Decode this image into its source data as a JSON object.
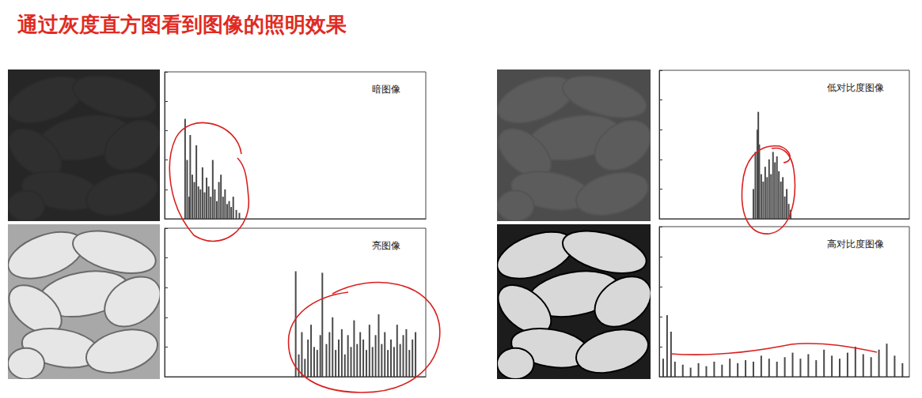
{
  "slide_title": "通过灰度直方图看到图像的照明效果",
  "chart_data": [
    {
      "type": "bar",
      "title": "暗图像",
      "color": "#4a4a4a",
      "x": [
        20,
        22,
        24,
        25,
        27,
        29,
        31,
        33,
        35,
        37,
        39,
        41,
        43,
        45,
        47,
        49,
        51,
        53,
        55,
        57,
        59,
        61,
        63,
        65,
        67,
        70,
        73
      ],
      "values": [
        68,
        40,
        15,
        57,
        30,
        25,
        50,
        22,
        20,
        35,
        18,
        28,
        22,
        15,
        40,
        20,
        12,
        25,
        30,
        15,
        20,
        10,
        12,
        8,
        15,
        6,
        4
      ],
      "xlim": [
        0,
        255
      ],
      "ylim": [
        0,
        100
      ],
      "yticks": [
        0,
        20,
        40,
        60,
        80,
        100
      ],
      "grid": false,
      "tick_labels": false
    },
    {
      "type": "bar",
      "title": "亮图像",
      "color": "#4a4a4a",
      "x": [
        128,
        131,
        134,
        137,
        140,
        143,
        146,
        149,
        152,
        154,
        158,
        161,
        164,
        167,
        170,
        173,
        176,
        179,
        182,
        185,
        188,
        191,
        194,
        197,
        200,
        203,
        206,
        209,
        212,
        215,
        218,
        221,
        224,
        227,
        230,
        233,
        236,
        239,
        242,
        245
      ],
      "values": [
        71,
        15,
        30,
        12,
        25,
        35,
        20,
        18,
        28,
        70,
        22,
        30,
        40,
        18,
        25,
        32,
        15,
        28,
        20,
        38,
        22,
        30,
        25,
        18,
        35,
        20,
        28,
        42,
        22,
        30,
        18,
        25,
        20,
        35,
        22,
        28,
        32,
        18,
        25,
        30
      ],
      "xlim": [
        0,
        255
      ],
      "ylim": [
        0,
        100
      ],
      "yticks": [
        0,
        20,
        40,
        60,
        80,
        100
      ],
      "grid": false,
      "tick_labels": false
    },
    {
      "type": "bar",
      "title": "低对比度图像",
      "color": "#4a4a4a",
      "x": [
        96,
        98,
        100,
        101,
        102,
        104,
        106,
        108,
        110,
        112,
        114,
        116,
        118,
        120,
        122,
        124,
        126,
        128,
        130,
        132,
        134
      ],
      "values": [
        20,
        45,
        60,
        72,
        50,
        30,
        25,
        35,
        28,
        40,
        30,
        45,
        38,
        42,
        32,
        25,
        28,
        15,
        20,
        10,
        6
      ],
      "xlim": [
        0,
        255
      ],
      "ylim": [
        0,
        100
      ],
      "yticks": [
        0,
        20,
        40,
        60,
        80,
        100
      ],
      "grid": false,
      "tick_labels": false
    },
    {
      "type": "bar",
      "title": "高对比度图像",
      "color": "#4a4a4a",
      "x": [
        4,
        8,
        12,
        16,
        24,
        32,
        40,
        48,
        56,
        64,
        72,
        80,
        88,
        96,
        104,
        112,
        120,
        128,
        136,
        144,
        152,
        160,
        168,
        176,
        184,
        192,
        200,
        208,
        216,
        224,
        232,
        240,
        248
      ],
      "values": [
        12,
        41,
        30,
        10,
        8,
        6,
        9,
        7,
        10,
        8,
        12,
        9,
        11,
        10,
        14,
        12,
        10,
        13,
        16,
        12,
        15,
        11,
        18,
        14,
        12,
        16,
        20,
        15,
        13,
        18,
        22,
        14,
        9
      ],
      "xlim": [
        0,
        255
      ],
      "ylim": [
        0,
        100
      ],
      "yticks": [
        0,
        20,
        40,
        60,
        80,
        100
      ],
      "grid": false,
      "tick_labels": false
    }
  ]
}
